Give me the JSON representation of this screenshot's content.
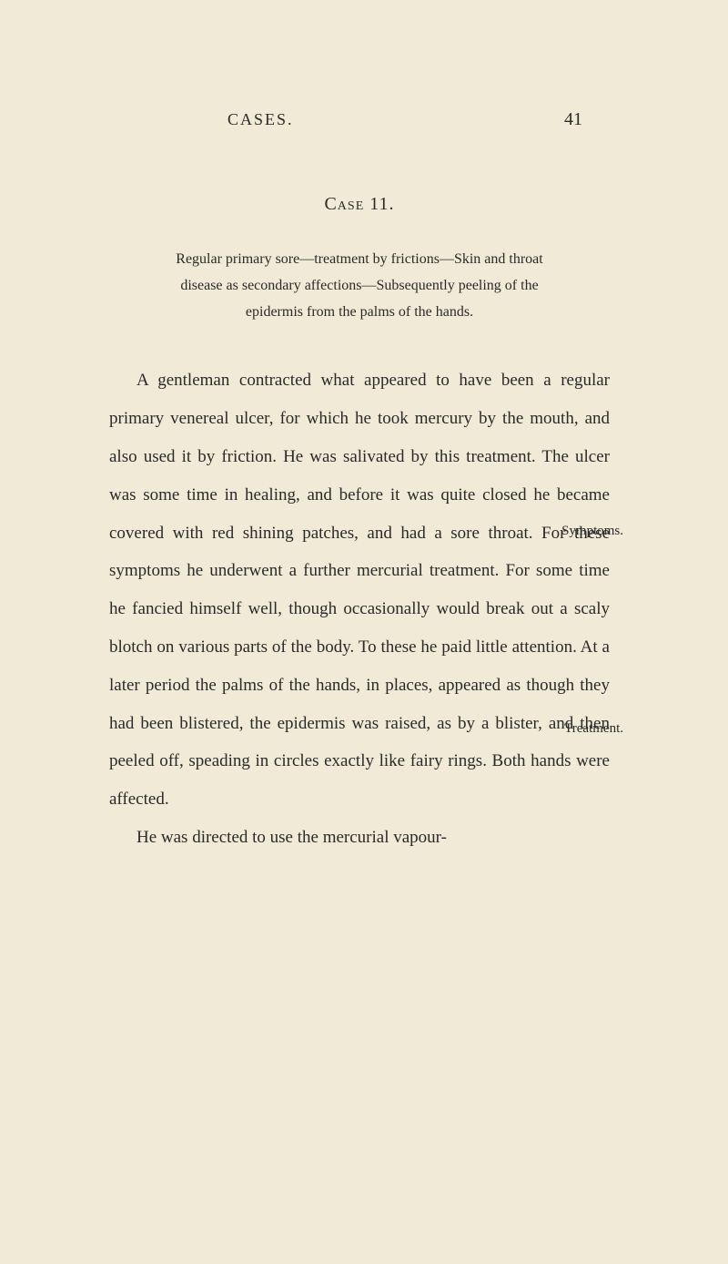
{
  "header": {
    "title": "CASES.",
    "pageNumber": "41"
  },
  "case": {
    "title": "Case 11.",
    "subtitle": "Regular primary sore—treatment by frictions—Skin and throat disease as secondary affections—Subsequently peeling of the epidermis from the palms of the hands."
  },
  "paragraphs": {
    "p1": "A gentleman contracted what appeared to have been a regular primary venereal ulcer, for which he took mercury by the mouth, and also used it by friction. He was salivated by this treatment. The ulcer was some time in healing, and before it was quite closed he became covered with red shining patches, and had a sore throat. For these symptoms he underwent a further mercurial treatment. For some time he fancied himself well, though occasionally would break out a scaly blotch on various parts of the body. To these he paid little attention. At a later period the palms of the hands, in places, appeared as though they had been blistered, the epidermis was raised, as by a blister, and then peeled off, speading in circles exactly like fairy rings. Both hands were affected.",
    "p2": "He was directed to use the mercurial vapour-"
  },
  "marginNotes": {
    "note1": "Symptoms.",
    "note2": "Treatment."
  },
  "colors": {
    "background": "#f0ead6",
    "text": "#2a2a2a"
  },
  "typography": {
    "bodyFontSize": 19,
    "headerFontSize": 18,
    "titleFontSize": 20,
    "subtitleFontSize": 16,
    "marginNoteFontSize": 15,
    "lineHeight": 2.2
  }
}
